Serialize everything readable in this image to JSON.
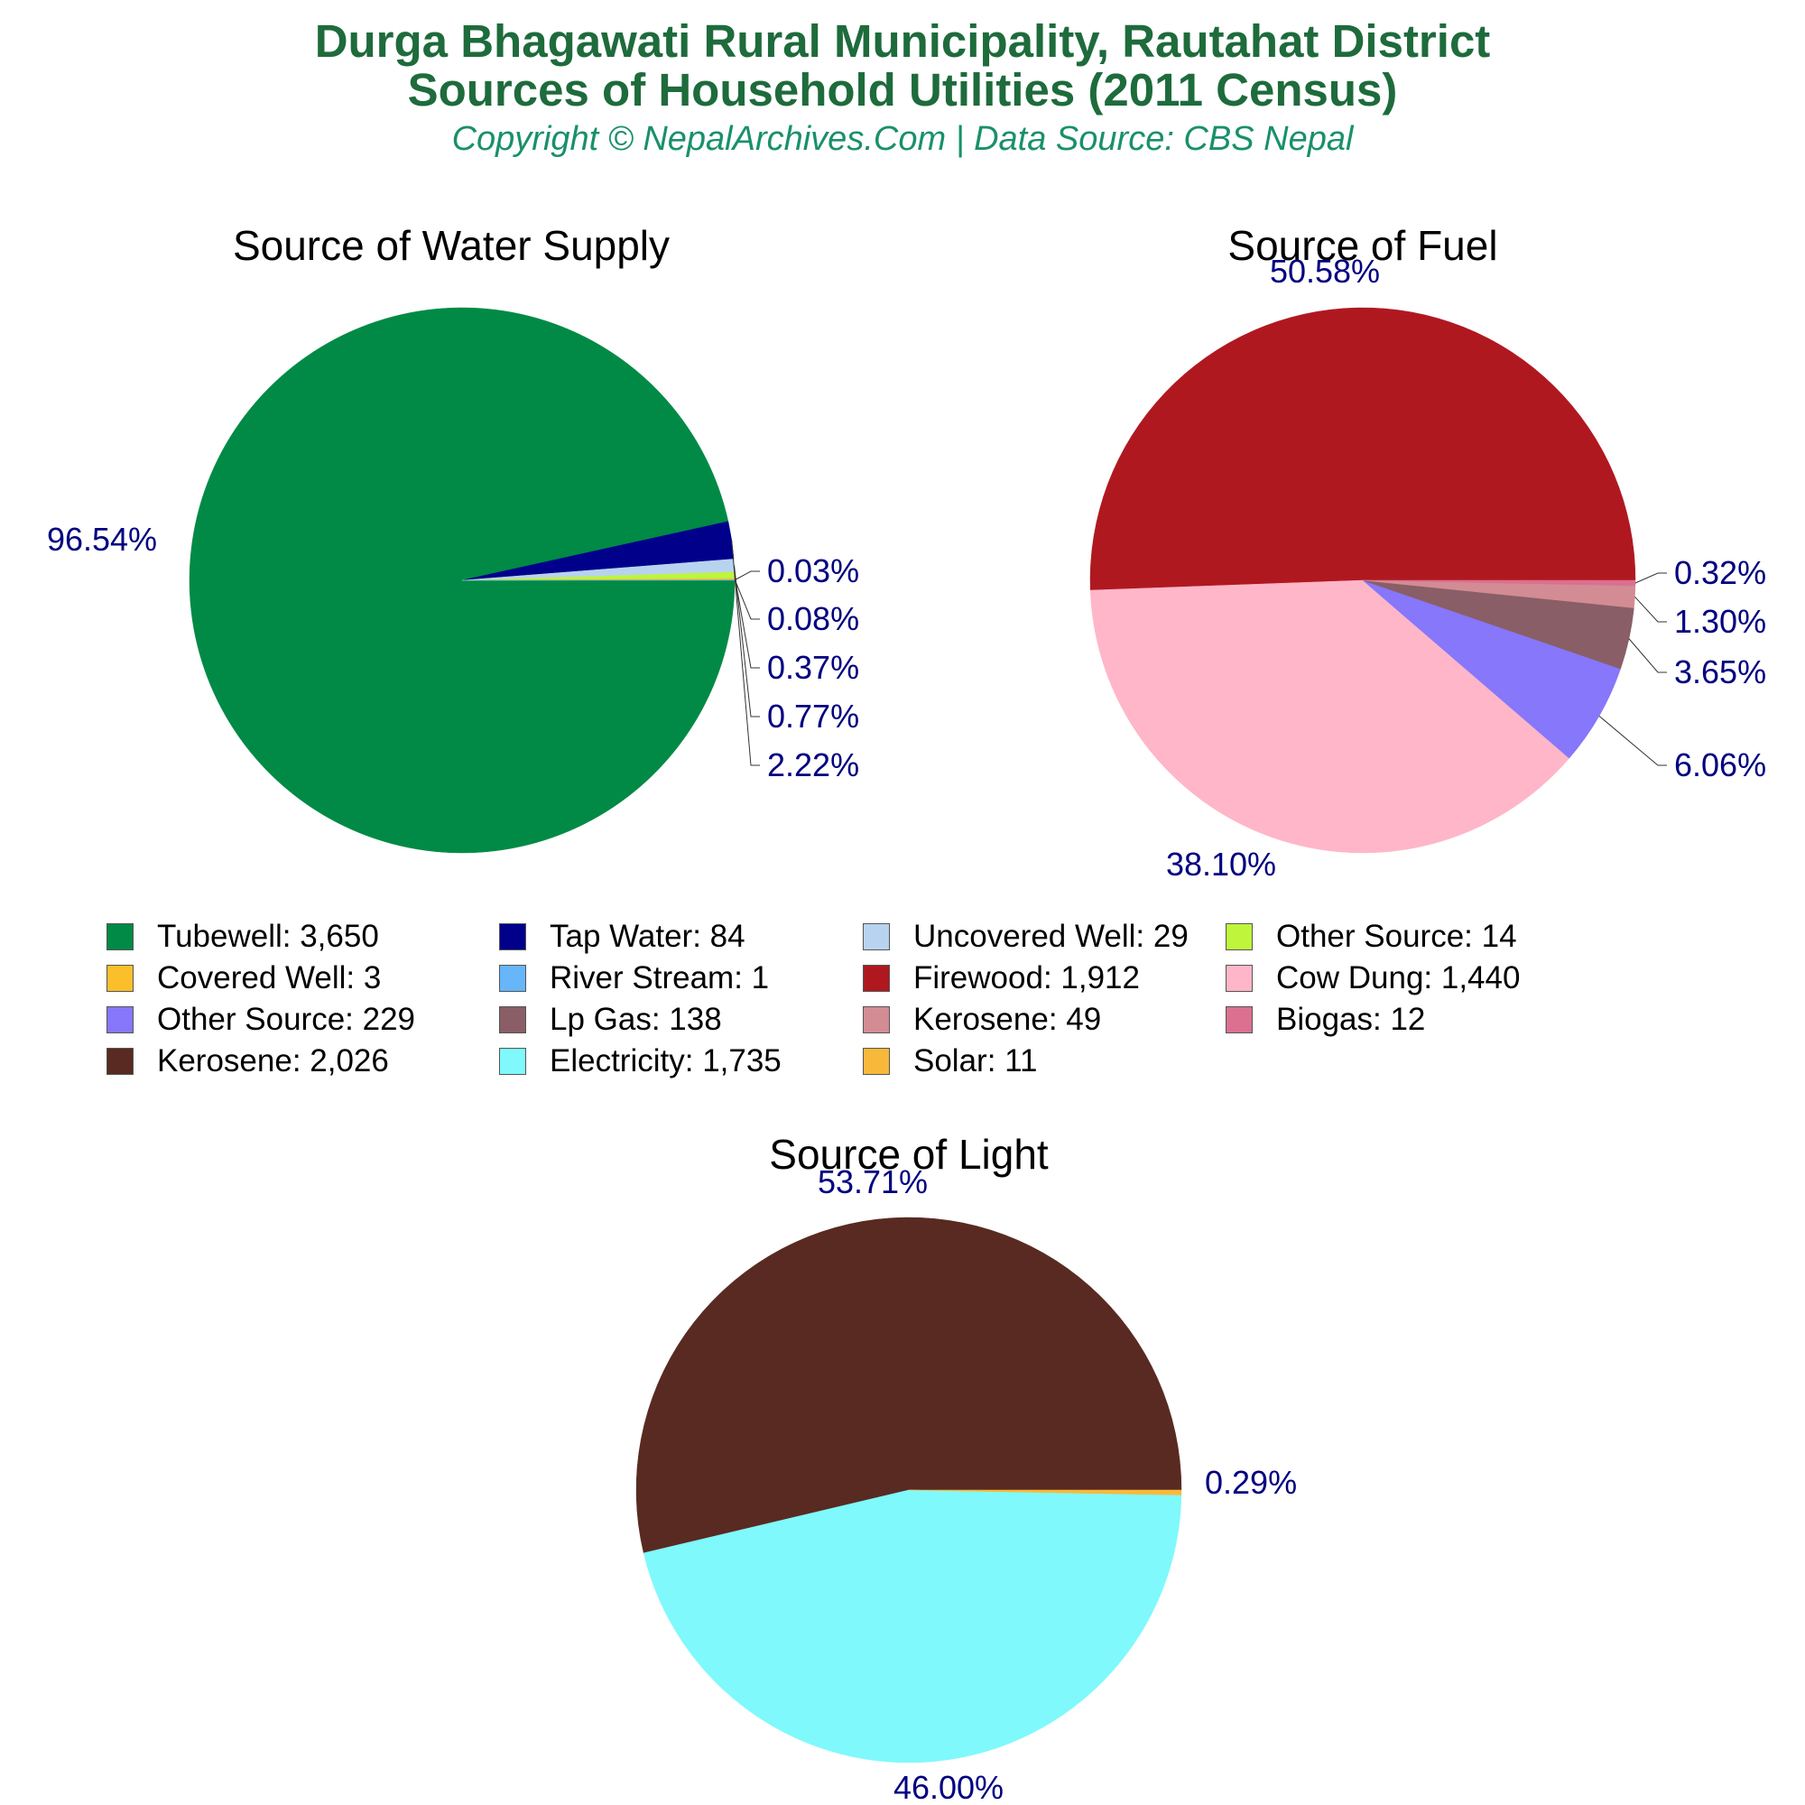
{
  "title_line1": "Durga Bhagawati Rural Municipality, Rautahat District",
  "title_line2": "Sources of Household Utilities (2011 Census)",
  "subtitle": "Copyright © NepalArchives.Com | Data Source: CBS Nepal",
  "colors": {
    "title": "#1e6b3c",
    "subtitle": "#19906b",
    "pct_label": "#000080",
    "pie_title": "#000000"
  },
  "chart_data": [
    {
      "type": "pie",
      "title": "Source of Water Supply",
      "slices": [
        {
          "label": "Tubewell",
          "value": 3650,
          "percent": "96.54%",
          "color": "#008a45"
        },
        {
          "label": "Tap Water",
          "value": 84,
          "percent": "2.22%",
          "color": "#00008b"
        },
        {
          "label": "Uncovered Well",
          "value": 29,
          "percent": "0.77%",
          "color": "#b8d3ef"
        },
        {
          "label": "Other Source",
          "value": 14,
          "percent": "0.37%",
          "color": "#bff53b"
        },
        {
          "label": "Covered Well",
          "value": 3,
          "percent": "0.08%",
          "color": "#fbbf2c"
        },
        {
          "label": "River Stream",
          "value": 1,
          "percent": "0.03%",
          "color": "#66b6f9"
        }
      ]
    },
    {
      "type": "pie",
      "title": "Source of Fuel",
      "slices": [
        {
          "label": "Firewood",
          "value": 1912,
          "percent": "50.58%",
          "color": "#b01820"
        },
        {
          "label": "Cow Dung",
          "value": 1440,
          "percent": "38.10%",
          "color": "#ffb6c8"
        },
        {
          "label": "Other Source",
          "value": 229,
          "percent": "6.06%",
          "color": "#8677fb"
        },
        {
          "label": "Lp Gas",
          "value": 138,
          "percent": "3.65%",
          "color": "#8a5e66"
        },
        {
          "label": "Kerosene",
          "value": 49,
          "percent": "1.30%",
          "color": "#d38c93"
        },
        {
          "label": "Biogas",
          "value": 12,
          "percent": "0.32%",
          "color": "#db7090"
        }
      ]
    },
    {
      "type": "pie",
      "title": "Source of Light",
      "slices": [
        {
          "label": "Kerosene",
          "value": 2026,
          "percent": "53.71%",
          "color": "#592a21"
        },
        {
          "label": "Electricity",
          "value": 1735,
          "percent": "46.00%",
          "color": "#7ff9fc"
        },
        {
          "label": "Solar",
          "value": 11,
          "percent": "0.29%",
          "color": "#f8b93a"
        }
      ]
    }
  ],
  "legend": [
    {
      "text": "Tubewell: 3,650",
      "color": "#008a45"
    },
    {
      "text": "Tap Water: 84",
      "color": "#00008b"
    },
    {
      "text": "Uncovered Well: 29",
      "color": "#b8d3ef"
    },
    {
      "text": "Other Source: 14",
      "color": "#bff53b"
    },
    {
      "text": "Covered Well: 3",
      "color": "#fbbf2c"
    },
    {
      "text": "River Stream: 1",
      "color": "#66b6f9"
    },
    {
      "text": "Firewood: 1,912",
      "color": "#b01820"
    },
    {
      "text": "Cow Dung: 1,440",
      "color": "#ffb6c8"
    },
    {
      "text": "Other Source: 229",
      "color": "#8677fb"
    },
    {
      "text": "Lp Gas: 138",
      "color": "#8a5e66"
    },
    {
      "text": "Kerosene: 49",
      "color": "#d38c93"
    },
    {
      "text": "Biogas: 12",
      "color": "#db7090"
    },
    {
      "text": "Kerosene: 2,026",
      "color": "#592a21"
    },
    {
      "text": "Electricity: 1,735",
      "color": "#7ff9fc"
    },
    {
      "text": "Solar: 11",
      "color": "#f8b93a"
    }
  ]
}
